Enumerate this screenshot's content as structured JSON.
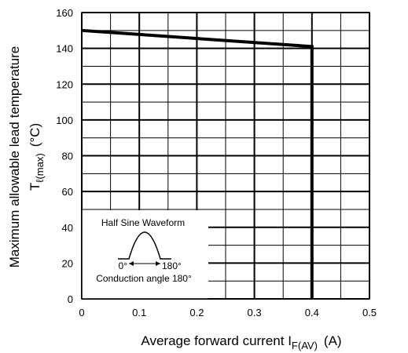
{
  "chart_data": {
    "type": "line",
    "xlabel": {
      "main": "Average forward current  I",
      "sub": "F(AV)",
      "unit": "(A)"
    },
    "ylabel": {
      "line1": "Maximum allowable lead temperature",
      "symbol": "T",
      "sub": "ℓ(max)",
      "unit": "(°C)"
    },
    "xlim": [
      0,
      0.5
    ],
    "ylim": [
      0,
      160
    ],
    "x_ticks": [
      0,
      0.1,
      0.2,
      0.3,
      0.4,
      0.5
    ],
    "x_tick_labels": [
      "0",
      "0.1",
      "0.2",
      "0.3",
      "0.4",
      "0.5"
    ],
    "y_ticks": [
      0,
      20,
      40,
      60,
      80,
      100,
      120,
      140,
      160
    ],
    "y_tick_labels": [
      "0",
      "20",
      "40",
      "60",
      "80",
      "100",
      "120",
      "140",
      "160"
    ],
    "grid": true,
    "series": [
      {
        "x": [
          0,
          0.4,
          0.4
        ],
        "y": [
          150,
          141,
          0
        ],
        "color": "#000000"
      }
    ],
    "inset": {
      "title": "Half Sine Waveform",
      "angle_start": "0°",
      "angle_end": "180°",
      "caption": "Conduction angle 180°"
    }
  }
}
